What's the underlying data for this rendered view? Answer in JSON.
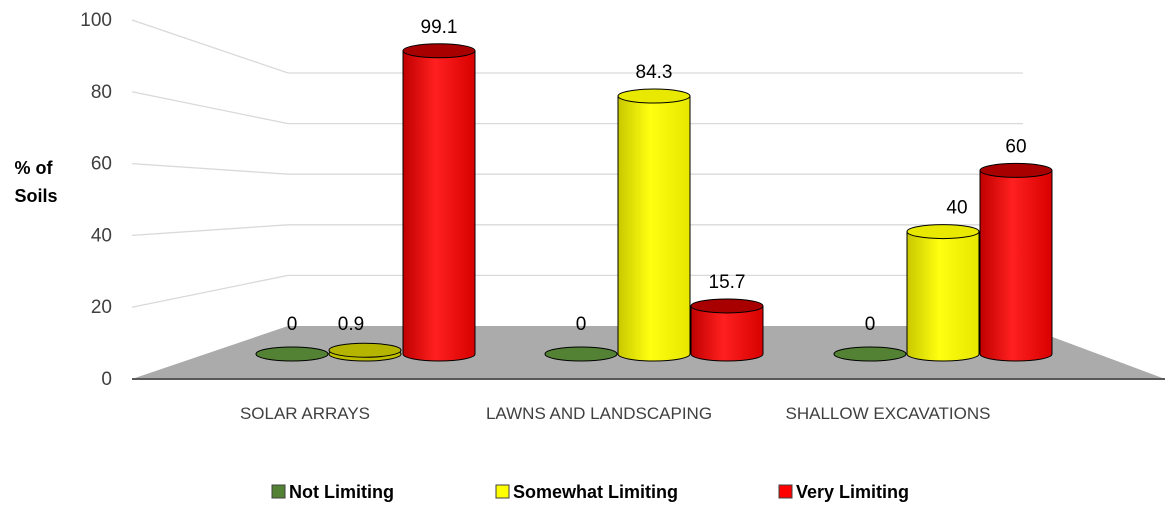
{
  "chart_data": {
    "type": "bar",
    "subtype": "3d-cylinder",
    "ylabel": "% of Soils",
    "ylim": [
      0,
      100
    ],
    "yticks": [
      0,
      20,
      40,
      60,
      80,
      100
    ],
    "grid": true,
    "legend_position": "bottom",
    "categories": [
      "SOLAR ARRAYS",
      "LAWNS AND LANDSCAPING",
      "SHALLOW EXCAVATIONS"
    ],
    "series": [
      {
        "name": "Not Limiting",
        "color": "#548235",
        "values": [
          0,
          0,
          0
        ],
        "labels": [
          "0",
          "0",
          "0"
        ]
      },
      {
        "name": "Somewhat Limiting",
        "color": "#FFFF00",
        "values": [
          0.9,
          84.3,
          40
        ],
        "labels": [
          "0.9",
          "84.3",
          "40"
        ]
      },
      {
        "name": "Very Limiting",
        "color": "#FF0000",
        "values": [
          99.1,
          15.7,
          60
        ],
        "labels": [
          "99.1",
          "15.7",
          "60"
        ]
      }
    ]
  }
}
